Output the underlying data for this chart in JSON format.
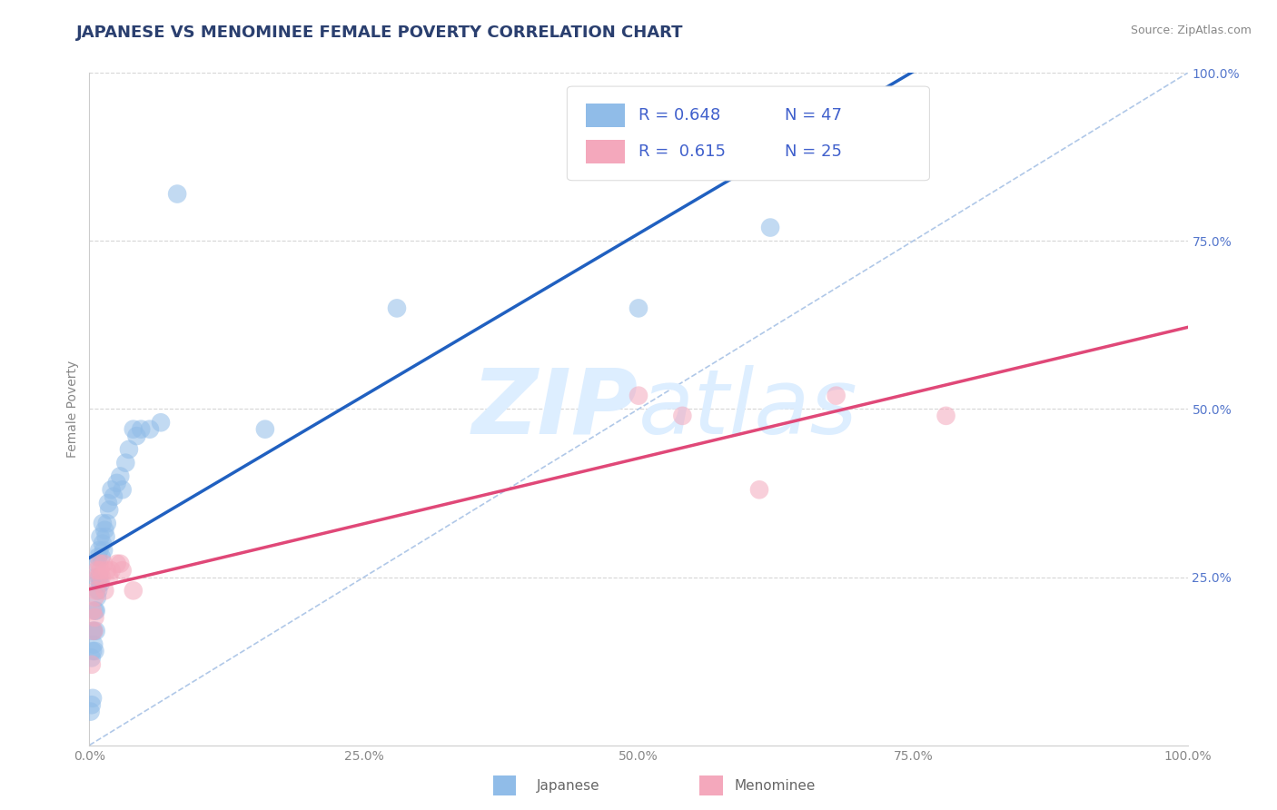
{
  "title": "JAPANESE VS MENOMINEE FEMALE POVERTY CORRELATION CHART",
  "source": "Source: ZipAtlas.com",
  "ylabel": "Female Poverty",
  "xlim": [
    0,
    1
  ],
  "ylim": [
    0,
    1
  ],
  "xticks": [
    0,
    0.25,
    0.5,
    0.75,
    1.0
  ],
  "yticks": [
    0.25,
    0.5,
    0.75,
    1.0
  ],
  "xticklabels": [
    "0.0%",
    "25.0%",
    "50.0%",
    "75.0%",
    "100.0%"
  ],
  "yticklabels_right": [
    "25.0%",
    "50.0%",
    "75.0%",
    "100.0%"
  ],
  "japanese_R": 0.648,
  "japanese_N": 47,
  "menominee_R": 0.615,
  "menominee_N": 25,
  "japanese_color": "#90bce8",
  "menominee_color": "#f4a8bc",
  "japanese_line_color": "#2060c0",
  "menominee_line_color": "#e04878",
  "diagonal_color": "#b0c8e8",
  "grid_color": "#cccccc",
  "background_color": "#ffffff",
  "watermark_color": "#ddeeff",
  "title_color": "#2a3f6f",
  "source_color": "#888888",
  "tick_color": "#5577cc",
  "legend_color": "#4060cc",
  "japanese_x": [
    0.001,
    0.002,
    0.002,
    0.003,
    0.003,
    0.003,
    0.004,
    0.004,
    0.005,
    0.005,
    0.006,
    0.006,
    0.006,
    0.007,
    0.007,
    0.008,
    0.008,
    0.009,
    0.009,
    0.01,
    0.01,
    0.011,
    0.012,
    0.012,
    0.013,
    0.014,
    0.015,
    0.016,
    0.017,
    0.018,
    0.02,
    0.022,
    0.025,
    0.028,
    0.03,
    0.033,
    0.036,
    0.04,
    0.043,
    0.047,
    0.055,
    0.065,
    0.08,
    0.16,
    0.28,
    0.5,
    0.62
  ],
  "japanese_y": [
    0.05,
    0.06,
    0.13,
    0.07,
    0.14,
    0.17,
    0.15,
    0.17,
    0.14,
    0.2,
    0.17,
    0.2,
    0.25,
    0.22,
    0.27,
    0.23,
    0.28,
    0.25,
    0.29,
    0.24,
    0.31,
    0.28,
    0.3,
    0.33,
    0.29,
    0.32,
    0.31,
    0.33,
    0.36,
    0.35,
    0.38,
    0.37,
    0.39,
    0.4,
    0.38,
    0.42,
    0.44,
    0.47,
    0.46,
    0.47,
    0.47,
    0.48,
    0.82,
    0.47,
    0.65,
    0.65,
    0.77
  ],
  "menominee_x": [
    0.002,
    0.003,
    0.004,
    0.005,
    0.005,
    0.006,
    0.007,
    0.008,
    0.009,
    0.01,
    0.011,
    0.013,
    0.014,
    0.016,
    0.018,
    0.02,
    0.025,
    0.028,
    0.03,
    0.04,
    0.5,
    0.54,
    0.61,
    0.68,
    0.78
  ],
  "menominee_y": [
    0.12,
    0.2,
    0.17,
    0.19,
    0.22,
    0.23,
    0.26,
    0.25,
    0.27,
    0.26,
    0.25,
    0.27,
    0.23,
    0.26,
    0.25,
    0.26,
    0.27,
    0.27,
    0.26,
    0.23,
    0.52,
    0.49,
    0.38,
    0.52,
    0.49
  ],
  "title_fontsize": 13,
  "axis_label_fontsize": 10,
  "tick_fontsize": 10,
  "legend_fontsize": 13,
  "source_fontsize": 9
}
